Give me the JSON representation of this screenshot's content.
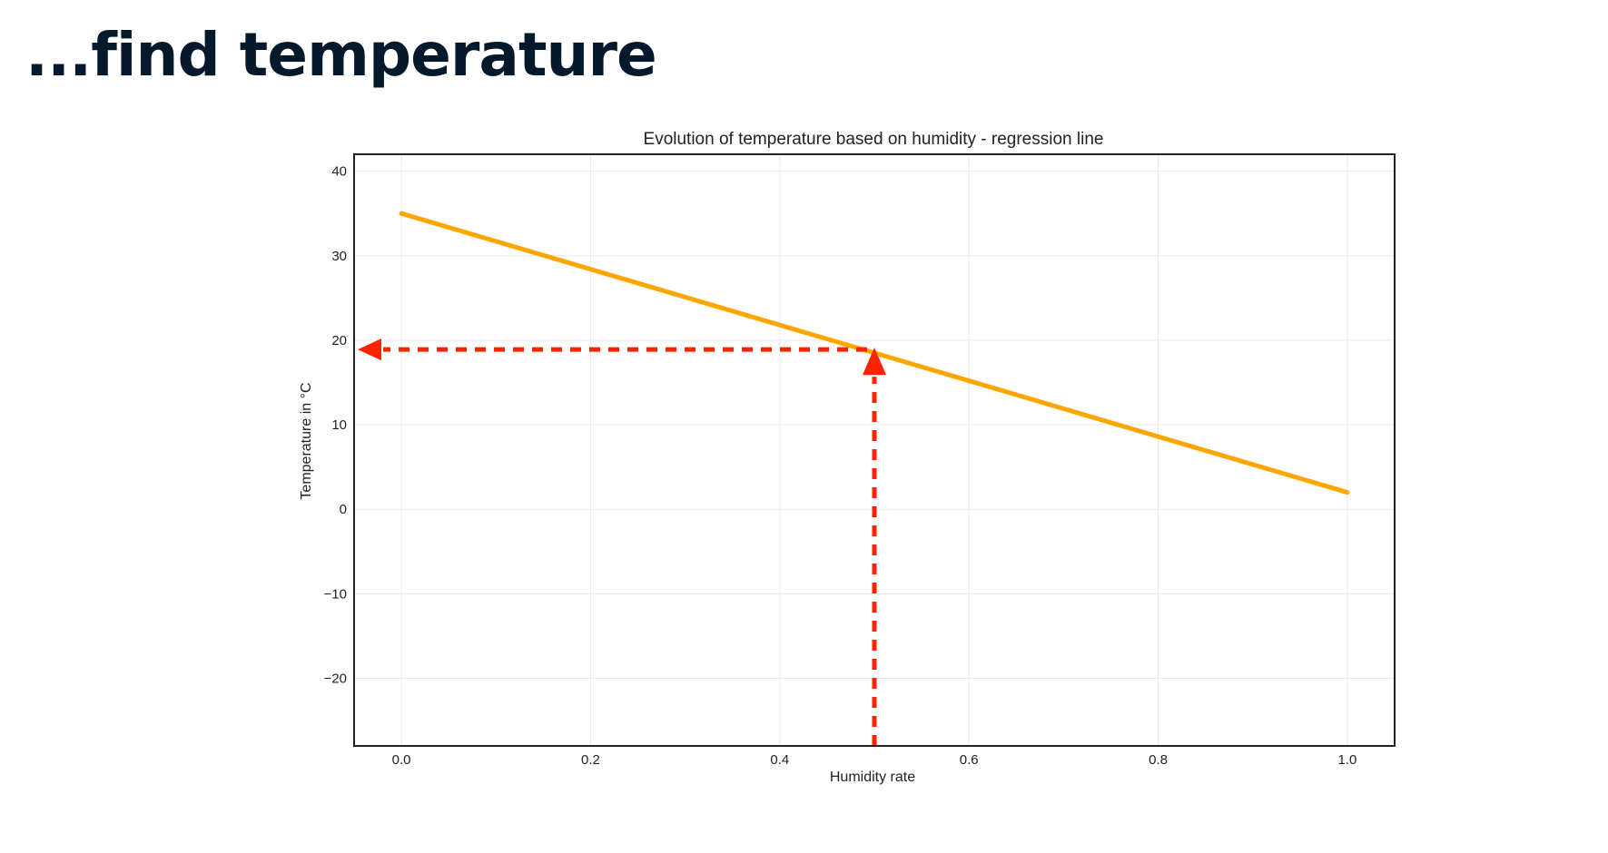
{
  "slide": {
    "title": "...find temperature"
  },
  "chart_data": {
    "type": "line",
    "title": "Evolution of temperature based on humidity - regression line",
    "xlabel": "Humidity rate",
    "ylabel": "Temperature in °C",
    "xlim": [
      -0.05,
      1.05
    ],
    "ylim": [
      -28,
      42
    ],
    "xticks": [
      0.0,
      0.2,
      0.4,
      0.6,
      0.8,
      1.0
    ],
    "xtick_labels": [
      "0.0",
      "0.2",
      "0.4",
      "0.6",
      "0.8",
      "1.0"
    ],
    "yticks": [
      40,
      30,
      20,
      10,
      0,
      -10,
      -20
    ],
    "ytick_labels": [
      "40",
      "30",
      "20",
      "10",
      "0",
      "−10",
      "−20"
    ],
    "grid": true,
    "series": [
      {
        "x": [
          0.0,
          1.0
        ],
        "y": [
          35,
          2
        ],
        "color": "#ffa500"
      }
    ],
    "annotations": {
      "lookup_x": 0.5,
      "lookup_y": 18.9,
      "color": "#ff2200",
      "style": "dashed arrows"
    }
  }
}
